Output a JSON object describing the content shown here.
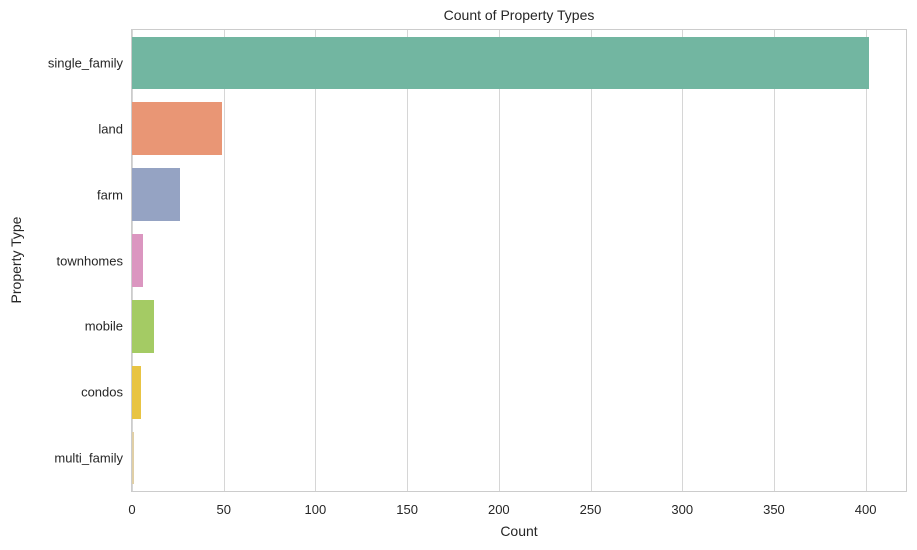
{
  "chart_data": {
    "type": "bar",
    "orientation": "horizontal",
    "title": "Count of Property Types",
    "xlabel": "Count",
    "ylabel": "Property Type",
    "categories": [
      "single_family",
      "land",
      "farm",
      "townhomes",
      "mobile",
      "condos",
      "multi_family"
    ],
    "values": [
      402,
      49,
      26,
      6,
      12,
      5,
      1
    ],
    "colors": [
      "#72b6a1",
      "#e99675",
      "#95a3c3",
      "#db96c0",
      "#a4cb64",
      "#e8c444",
      "#e0cfa6"
    ],
    "xlim": [
      0,
      422
    ],
    "xticks": [
      0,
      50,
      100,
      150,
      200,
      250,
      300,
      350,
      400
    ],
    "grid": {
      "x": true,
      "y": false
    },
    "legend": null
  }
}
